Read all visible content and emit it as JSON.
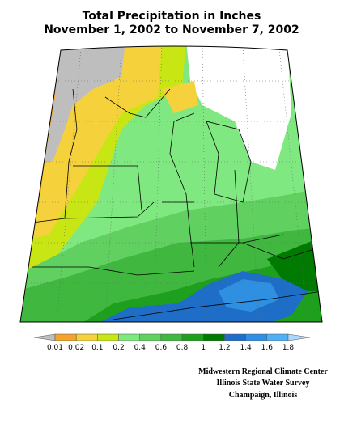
{
  "title": [
    "Total Precipitation in Inches",
    "November 1, 2002 to November 7, 2002"
  ],
  "legend": {
    "labels": [
      0.01,
      0.02,
      0.1,
      0.2,
      0.4,
      0.6,
      0.8,
      1,
      1.2,
      1.4,
      1.6,
      1.8
    ],
    "colors": [
      "#bebebe",
      "#f5a32a",
      "#f5d23c",
      "#c8e614",
      "#80e880",
      "#60d060",
      "#40b840",
      "#1ea01e",
      "#007a00",
      "#1e6ec8",
      "#2f8fe0",
      "#50b0f5",
      "#a8d8ff"
    ]
  },
  "credits": [
    "Midwestern Regional Climate Center",
    "Illinois State Water Survey",
    "Champaign, Illinois"
  ]
}
